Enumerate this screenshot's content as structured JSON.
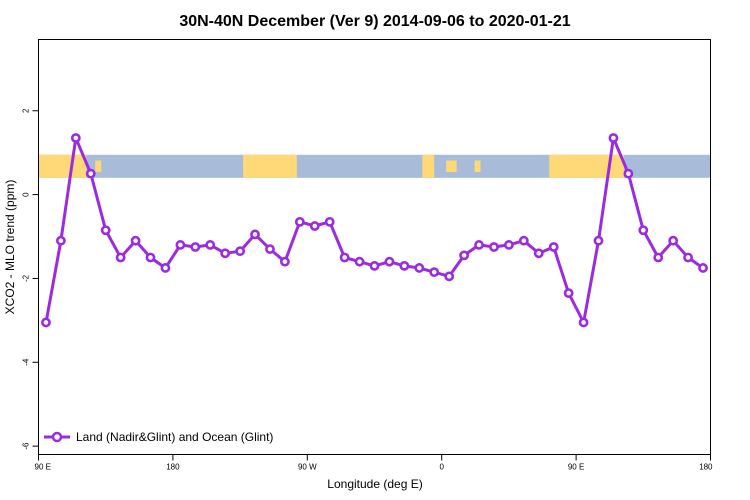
{
  "chart_data": {
    "type": "line",
    "title": "30N-40N December (Ver 9)   2014-09-06 to 2020-01-21",
    "xlabel": "Longitude (deg E)",
    "ylabel": "XCO2 - MLO trend (ppm)",
    "xlim": [
      90,
      540
    ],
    "ylim": [
      -6.2,
      3.7
    ],
    "x_ticks": [
      {
        "value": 90,
        "label": "90 E"
      },
      {
        "value": 180,
        "label": "180"
      },
      {
        "value": 270,
        "label": "90 W"
      },
      {
        "value": 360,
        "label": "0"
      },
      {
        "value": 450,
        "label": "90 E"
      },
      {
        "value": 540,
        "label": "180"
      }
    ],
    "y_ticks": [
      {
        "value": 2,
        "label": "2"
      },
      {
        "value": 0,
        "label": "0"
      },
      {
        "value": -2,
        "label": "-2"
      },
      {
        "value": -4,
        "label": "-4"
      },
      {
        "value": -6,
        "label": "-6"
      }
    ],
    "map_strip": {
      "y_range": [
        0.4,
        0.95
      ],
      "ocean_color": "#A8BCD9",
      "land_color": "#FFD978",
      "land_segments": [
        [
          90,
          122
        ],
        [
          227,
          263
        ],
        [
          347,
          355
        ],
        [
          432,
          482
        ]
      ],
      "land_islands": [
        [
          128,
          132
        ],
        [
          363,
          370
        ],
        [
          382,
          386
        ]
      ]
    },
    "series": [
      {
        "name": "Land (Nadir&Glint) and Ocean (Glint)",
        "color": "#9B2BE0",
        "x": [
          95,
          105,
          115,
          125,
          135,
          145,
          155,
          165,
          175,
          185,
          195,
          205,
          215,
          225,
          235,
          245,
          255,
          265,
          275,
          285,
          295,
          305,
          315,
          325,
          335,
          345,
          355,
          365,
          375,
          385,
          395,
          405,
          415,
          425,
          435,
          445,
          455,
          465,
          475,
          485,
          495,
          505,
          515,
          525,
          535
        ],
        "y": [
          -3.05,
          -1.1,
          1.35,
          0.5,
          -0.85,
          -1.5,
          -1.1,
          -1.5,
          -1.75,
          -1.2,
          -1.25,
          -1.2,
          -1.4,
          -1.35,
          -0.95,
          -1.3,
          -1.6,
          -0.65,
          -0.75,
          -0.65,
          -1.5,
          -1.6,
          -1.7,
          -1.6,
          -1.7,
          -1.75,
          -1.85,
          -1.95,
          -1.45,
          -1.2,
          -1.25,
          -1.2,
          -1.1,
          -1.4,
          -1.25,
          -2.35,
          -3.05,
          -1.1,
          1.35,
          0.5,
          -0.85,
          -1.5,
          -1.1,
          -1.5,
          -1.75
        ]
      }
    ],
    "legend": {
      "position": "bottom-left"
    },
    "grid": false
  }
}
